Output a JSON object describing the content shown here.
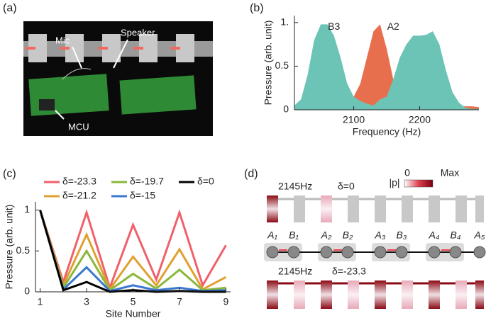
{
  "panel_labels": [
    "(a)",
    "(b)",
    "(c)",
    "(d)"
  ],
  "photo": {
    "labels": [
      "Mic",
      "Speaker",
      "MCU"
    ]
  },
  "chart_data": [
    {
      "type": "area",
      "x_label": "Frequency (Hz)",
      "y_label": "Pressure (arb. unit)",
      "x": [
        2010,
        2020,
        2030,
        2040,
        2050,
        2060,
        2070,
        2080,
        2090,
        2100,
        2110,
        2120,
        2130,
        2140,
        2150,
        2160,
        2170,
        2180,
        2190,
        2200,
        2210,
        2220,
        2230,
        2240,
        2250,
        2260,
        2270,
        2280,
        2290
      ],
      "series": [
        {
          "name": "A2",
          "color": "#e86f4e",
          "values": [
            0.03,
            0.03,
            0.03,
            0.03,
            0.03,
            0.03,
            0.04,
            0.05,
            0.08,
            0.15,
            0.3,
            0.6,
            0.9,
            0.98,
            0.7,
            0.35,
            0.15,
            0.08,
            0.05,
            0.04,
            0.04,
            0.04,
            0.04,
            0.04,
            0.04,
            0.04,
            0.04,
            0.04,
            0.03
          ]
        },
        {
          "name": "B3",
          "color": "#6cc4b6",
          "values": [
            0.05,
            0.12,
            0.4,
            0.8,
            0.98,
            0.98,
            0.85,
            0.6,
            0.3,
            0.15,
            0.1,
            0.07,
            0.05,
            0.12,
            0.15,
            0.35,
            0.6,
            0.75,
            0.85,
            0.85,
            0.86,
            0.9,
            0.75,
            0.45,
            0.2,
            0.08,
            0.02,
            0.01,
            0.01
          ]
        }
      ],
      "xlim": [
        2010,
        2290
      ],
      "xticks": [
        2100,
        2200
      ],
      "ylim": [
        0,
        1.08
      ],
      "yticks": [
        0,
        0.5,
        {
          "value": 1,
          "label": "1."
        }
      ]
    },
    {
      "type": "line",
      "x_label": "Site Number",
      "y_label": "Pressure (arb. unit)",
      "x": [
        1,
        2,
        3,
        4,
        5,
        6,
        7,
        8,
        9
      ],
      "series": [
        {
          "name": "δ=-23.3",
          "color": "#f0606a",
          "values": [
            1,
            0.12,
            0.97,
            0.05,
            0.82,
            0.15,
            0.97,
            0.08,
            0.57
          ]
        },
        {
          "name": "δ=-21.2",
          "color": "#e0a030",
          "values": [
            1,
            0.08,
            0.7,
            0.03,
            0.43,
            0.08,
            0.52,
            0.03,
            0.18
          ]
        },
        {
          "name": "δ=-19.7",
          "color": "#8ab83a",
          "values": [
            1,
            0.05,
            0.5,
            0.02,
            0.22,
            0.04,
            0.27,
            0.02,
            0.05
          ]
        },
        {
          "name": "δ=-15",
          "color": "#3a78d0",
          "values": [
            1,
            0.03,
            0.3,
            0.01,
            0.08,
            0.02,
            0.05,
            0.01,
            0.02
          ]
        },
        {
          "name": "δ=0",
          "color": "#000000",
          "values": [
            1,
            0.02,
            0.12,
            0,
            0.02,
            0,
            0.01,
            0,
            0
          ]
        }
      ],
      "xlim": [
        0.8,
        9.2
      ],
      "xticks": [
        1,
        3,
        5,
        7,
        9
      ],
      "ylim": [
        0,
        1.1
      ],
      "yticks": [
        0,
        0.5,
        1
      ],
      "legend": "top"
    }
  ],
  "diagram": {
    "top": {
      "frequency": "2145Hz",
      "detuning": "δ=0"
    },
    "bottom": {
      "frequency": "2145Hz",
      "detuning": "δ=-23.3"
    },
    "colorbar": {
      "title": "|p|",
      "min": "0",
      "max": "Max"
    },
    "sites": [
      "A₁",
      "B₁",
      "A₂",
      "B₂",
      "A₃",
      "B₃",
      "A₄",
      "B₄",
      "A₅"
    ]
  }
}
